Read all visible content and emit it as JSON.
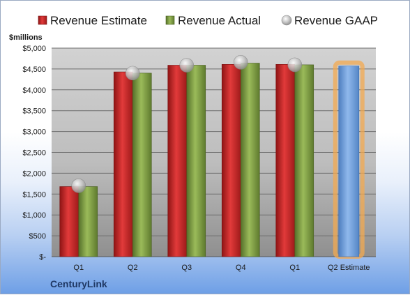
{
  "chart_data": {
    "type": "bar",
    "categories": [
      "Q1",
      "Q2",
      "Q3",
      "Q4",
      "Q1",
      "Q2 Estimate"
    ],
    "ylabel": "$millions",
    "ylim": [
      0,
      5000
    ],
    "yticks": [
      "$-",
      "$500",
      "$1,000",
      "$1,500",
      "$2,000",
      "$2,500",
      "$3,000",
      "$3,500",
      "$4,000",
      "$4,500",
      "$5,000"
    ],
    "legend_position": "top",
    "grid": true,
    "series": [
      {
        "name": "Revenue Estimate",
        "type": "bar",
        "color": "#cc2222",
        "values": [
          1680,
          4430,
          4590,
          4610,
          4610,
          null
        ]
      },
      {
        "name": "Revenue Actual",
        "type": "bar",
        "color": "#7a9a3e",
        "values": [
          1680,
          4400,
          4590,
          4640,
          4600,
          null
        ]
      },
      {
        "name": "Revenue GAAP",
        "type": "marker",
        "color": "#b0b0b0",
        "values": [
          1700,
          4400,
          4590,
          4660,
          4600,
          null
        ]
      },
      {
        "name": "",
        "type": "bar",
        "color": "#6f9fd8",
        "values": [
          null,
          null,
          null,
          null,
          null,
          4570
        ]
      }
    ]
  },
  "footer": {
    "company": "CenturyLink"
  }
}
